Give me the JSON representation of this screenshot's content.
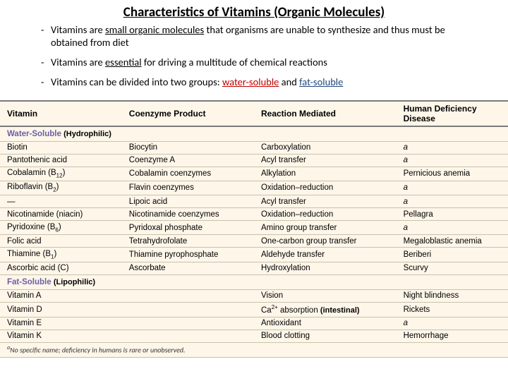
{
  "title": "Characteristics of Vitamins (Organic Molecules)",
  "bullets": {
    "b1a": "Vitamins are ",
    "b1b": "small organic molecules",
    "b1c": " that organisms are unable to synthesize and thus must be obtained from diet",
    "b2a": "Vitamins are ",
    "b2b": "essential",
    "b2c": " for driving a multitude of chemical reactions",
    "b3a": "Vitamins can be divided into two groups: ",
    "b3b": "water-soluble",
    "b3c": " and ",
    "b3d": "fat-soluble"
  },
  "headers": {
    "h1": "Vitamin",
    "h2": "Coenzyme Product",
    "h3": "Reaction Mediated",
    "h4": "Human Deficiency Disease"
  },
  "sections": {
    "ws": "Water-Soluble",
    "ws_note": "(Hydrophilic)",
    "fs": "Fat-Soluble",
    "fs_note": "(Lipophilic)"
  },
  "rows": {
    "r1": {
      "v": "Biotin",
      "c": "Biocytin",
      "m": "Carboxylation",
      "d": "a"
    },
    "r2": {
      "v": "Pantothenic acid",
      "c": "Coenzyme A",
      "m": "Acyl transfer",
      "d": "a"
    },
    "r3": {
      "v": "Cobalamin (B",
      "v2": "12",
      "v3": ")",
      "c": "Cobalamin coenzymes",
      "m": "Alkylation",
      "d": "Pernicious anemia"
    },
    "r4": {
      "v": "Riboflavin (B",
      "v2": "2",
      "v3": ")",
      "c": "Flavin coenzymes",
      "m": "Oxidation–reduction",
      "d": "a"
    },
    "r5": {
      "v": "—",
      "c": "Lipoic acid",
      "m": "Acyl transfer",
      "d": "a"
    },
    "r6": {
      "v": "Nicotinamide (niacin)",
      "c": "Nicotinamide coenzymes",
      "m": "Oxidation–reduction",
      "d": "Pellagra"
    },
    "r7": {
      "v": "Pyridoxine (B",
      "v2": "6",
      "v3": ")",
      "c": "Pyridoxal phosphate",
      "m": "Amino group transfer",
      "d": "a"
    },
    "r8": {
      "v": "Folic acid",
      "c": "Tetrahydrofolate",
      "m": "One-carbon group transfer",
      "d": "Megaloblastic anemia"
    },
    "r9": {
      "v": "Thiamine (B",
      "v2": "1",
      "v3": ")",
      "c": "Thiamine pyrophosphate",
      "m": "Aldehyde transfer",
      "d": "Beriberi"
    },
    "r10": {
      "v": "Ascorbic acid (C)",
      "c": "Ascorbate",
      "m": "Hydroxylation",
      "d": "Scurvy"
    },
    "r11": {
      "v": "Vitamin A",
      "c": "",
      "m": "Vision",
      "d": "Night blindness"
    },
    "r12": {
      "v": "Vitamin D",
      "c": "",
      "m1": "Ca",
      "m2": "2+",
      "m3": " absorption",
      "m_note": "(intestinal)",
      "d": "Rickets"
    },
    "r13": {
      "v": "Vitamin E",
      "c": "",
      "m": "Antioxidant",
      "d": "a"
    },
    "r14": {
      "v": "Vitamin K",
      "c": "",
      "m": "Blood clotting",
      "d": "Hemorrhage"
    }
  },
  "footnote_a": "a",
  "footnote": "No specific name; deficiency in humans is rare or unobserved."
}
